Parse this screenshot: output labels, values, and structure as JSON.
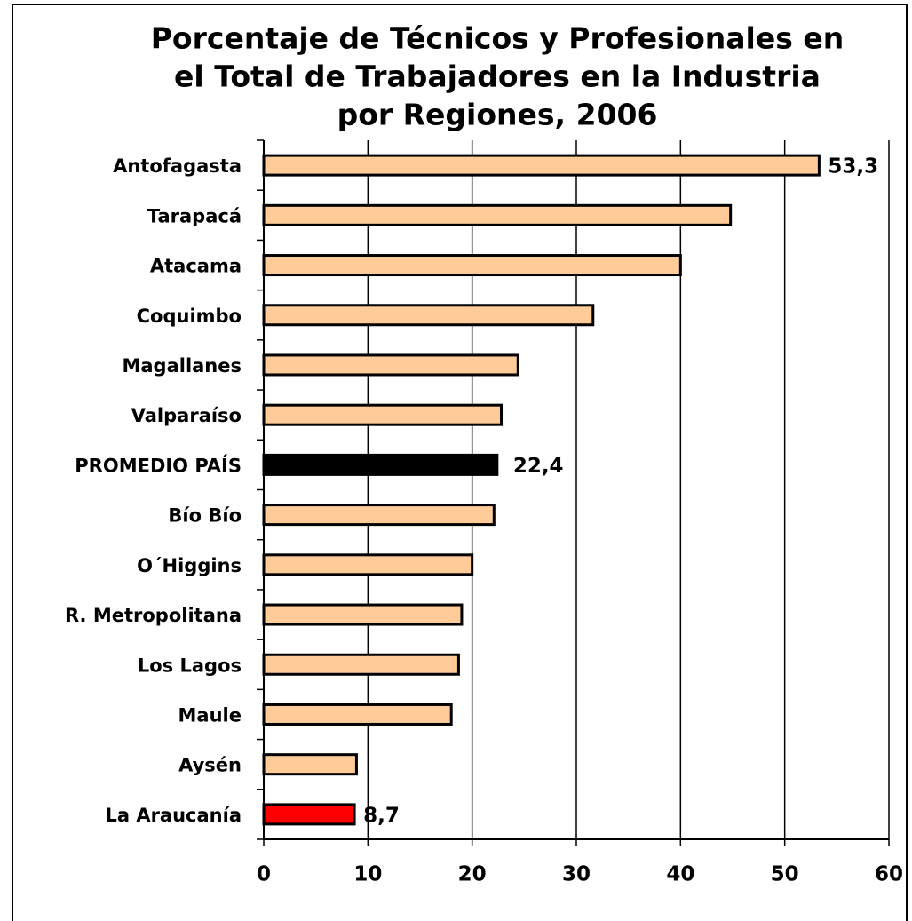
{
  "chart_data": {
    "type": "barh",
    "title": [
      "Porcentaje de Técnicos y Profesionales en",
      "el Total de Trabajadores en la Industria",
      "por Regiones, 2006"
    ],
    "categories": [
      "Antofagasta",
      "Tarapacá",
      "Atacama",
      "Coquimbo",
      "Magallanes",
      "Valparaíso",
      "PROMEDIO PAÍS",
      "Bío Bío",
      "O´Higgins",
      "R. Metropolitana",
      "Los Lagos",
      "Maule",
      "Aysén",
      "La Araucanía"
    ],
    "values": [
      53.3,
      44.8,
      40.0,
      31.6,
      24.4,
      22.8,
      22.4,
      22.1,
      20.0,
      19.0,
      18.7,
      18.0,
      8.9,
      8.7
    ],
    "value_labels": [
      "53,3",
      null,
      null,
      null,
      null,
      null,
      "22,4",
      null,
      null,
      null,
      null,
      null,
      null,
      "8,7"
    ],
    "colors": [
      "#FFCC99",
      "#FFCC99",
      "#FFCC99",
      "#FFCC99",
      "#FFCC99",
      "#FFCC99",
      "#000000",
      "#FFCC99",
      "#FFCC99",
      "#FFCC99",
      "#FFCC99",
      "#FFCC99",
      "#FFCC99",
      "#FF0000"
    ],
    "xlim": [
      0,
      60
    ],
    "xticks": [
      0,
      10,
      20,
      30,
      40,
      50,
      60
    ],
    "grid": true
  }
}
